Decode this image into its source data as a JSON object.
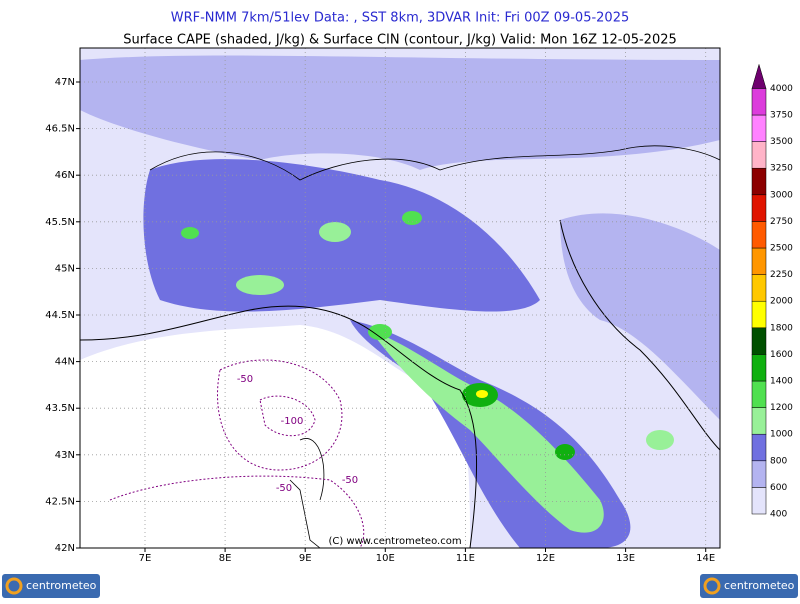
{
  "header": {
    "title": "WRF-NMM 7km/51lev   Data: , SST 8km, 3DVAR   Init: Fri 00Z 09-05-2025",
    "subtitle": "Surface CAPE (shaded, J/kg) & Surface CIN (contour, J/kg)   Valid: Mon 16Z 12-05-2025"
  },
  "map": {
    "lon_ticks": [
      {
        "value": 7,
        "label": "7E"
      },
      {
        "value": 8,
        "label": "8E"
      },
      {
        "value": 9,
        "label": "9E"
      },
      {
        "value": 10,
        "label": "10E"
      },
      {
        "value": 11,
        "label": "11E"
      },
      {
        "value": 12,
        "label": "12E"
      },
      {
        "value": 13,
        "label": "13E"
      },
      {
        "value": 14,
        "label": "14E"
      }
    ],
    "lat_ticks": [
      {
        "value": 47,
        "label": "47N"
      },
      {
        "value": 46.5,
        "label": "46.5N"
      },
      {
        "value": 46,
        "label": "46N"
      },
      {
        "value": 45.5,
        "label": "45.5N"
      },
      {
        "value": 45,
        "label": "45N"
      },
      {
        "value": 44.5,
        "label": "44.5N"
      },
      {
        "value": 44,
        "label": "44N"
      },
      {
        "value": 43.5,
        "label": "43.5N"
      },
      {
        "value": 43,
        "label": "43N"
      },
      {
        "value": 42.5,
        "label": "42.5N"
      },
      {
        "value": 42,
        "label": "42N"
      }
    ],
    "contour_labels": [
      "-50",
      "-100",
      "-50",
      "-50"
    ],
    "copyright": "(C) www.centrometeo.com"
  },
  "colorbar": {
    "levels": [
      400,
      600,
      800,
      1000,
      1200,
      1400,
      1600,
      1800,
      2000,
      2250,
      2500,
      2750,
      3000,
      3250,
      3500,
      3750,
      4000
    ],
    "colors": [
      "#e4e4fb",
      "#b4b4f0",
      "#7070e0",
      "#98f098",
      "#50e050",
      "#10b010",
      "#005000",
      "#ffff00",
      "#ffc800",
      "#ff9600",
      "#ff5a00",
      "#e01400",
      "#8c0000",
      "#ffb4c8",
      "#ff82ff",
      "#dc3cdc"
    ],
    "top_color": "#6e006e"
  },
  "logos": [
    "centrometeo",
    "centrometeo"
  ]
}
